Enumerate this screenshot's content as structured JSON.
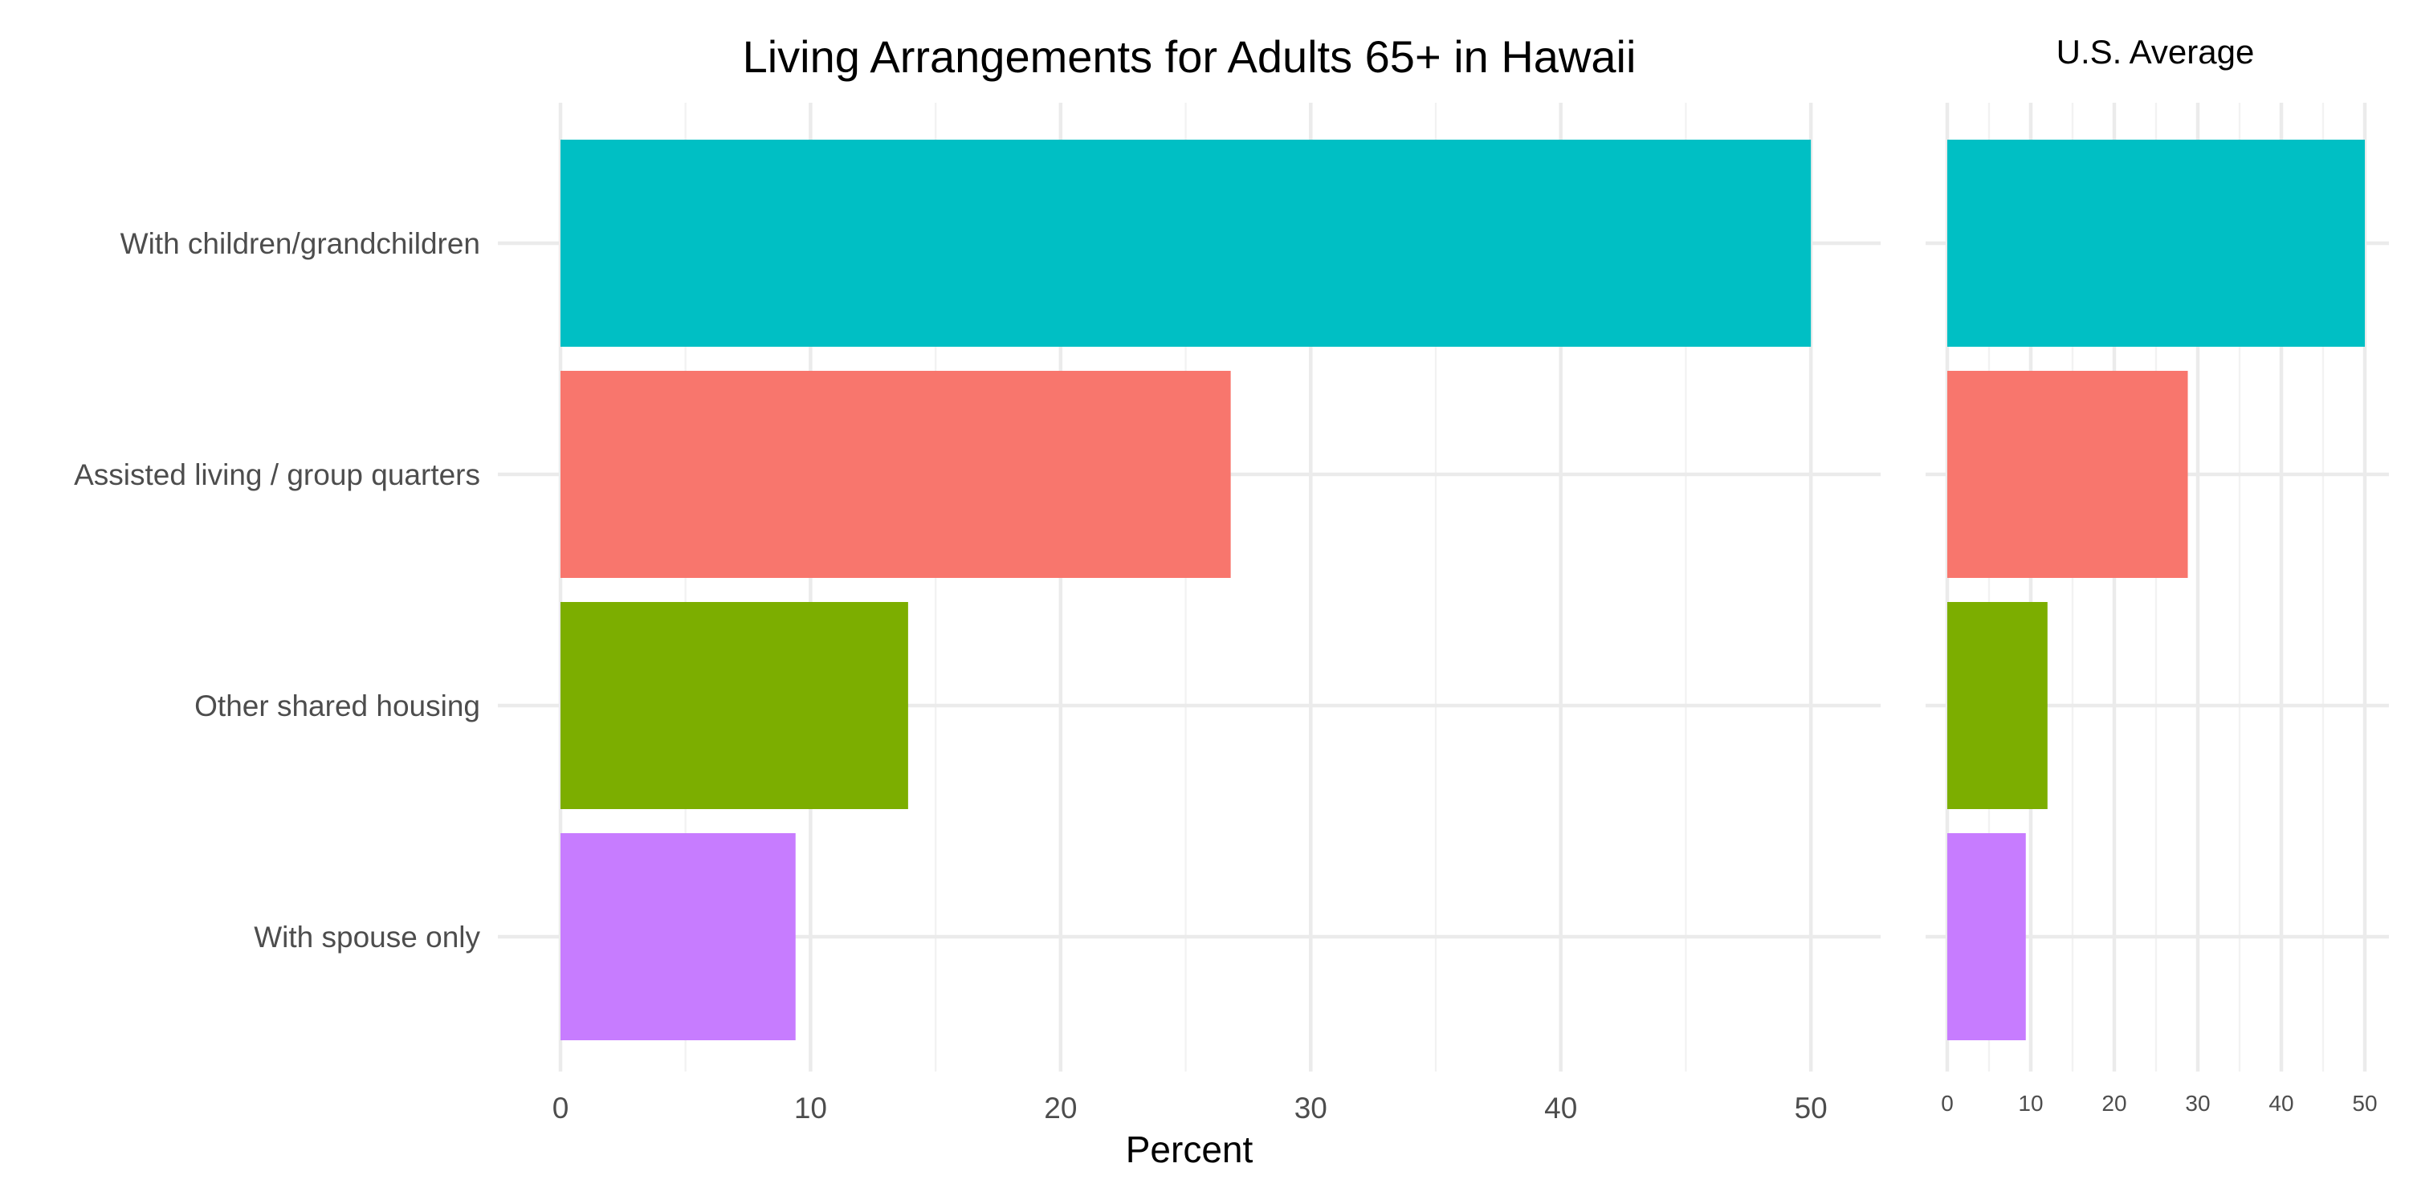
{
  "chart_data": [
    {
      "type": "bar",
      "orientation": "horizontal",
      "title": "Living Arrangements for Adults 65+ in Hawaii",
      "xlabel": "Percent",
      "ylabel": "",
      "xlim": [
        0,
        52.5
      ],
      "x_ticks": [
        0,
        10,
        20,
        30,
        40,
        50
      ],
      "grid": true,
      "legend": "none",
      "categories": [
        "With children/grandchildren",
        "Assisted living / group quarters",
        "Other shared housing",
        "With spouse only"
      ],
      "values": [
        50.0,
        26.8,
        13.9,
        9.4
      ],
      "colors": [
        "#00BFC4",
        "#F8766D",
        "#7CAE00",
        "#C77CFF"
      ]
    },
    {
      "type": "bar",
      "orientation": "horizontal",
      "title": "U.S. Average",
      "xlabel": "",
      "ylabel": "",
      "xlim": [
        0,
        52.5
      ],
      "x_ticks": [
        0,
        10,
        20,
        30,
        40,
        50
      ],
      "grid": true,
      "legend": "none",
      "categories": [
        "With children/grandchildren",
        "Assisted living / group quarters",
        "Other shared housing",
        "With spouse only"
      ],
      "values": [
        50.0,
        28.8,
        12.0,
        9.4
      ],
      "colors": [
        "#00BFC4",
        "#F8766D",
        "#7CAE00",
        "#C77CFF"
      ]
    }
  ]
}
